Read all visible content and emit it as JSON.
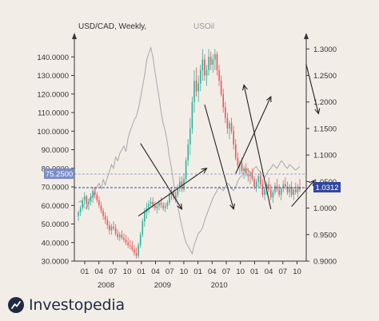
{
  "chart_data": {
    "type": "line",
    "series": [
      {
        "name": "USD/CAD, Weekly,",
        "ohlc": [
          [
            0.985,
            0.995,
            0.975,
            0.992
          ],
          [
            0.992,
            1.005,
            0.985,
            1.0
          ],
          [
            1.0,
            1.02,
            0.995,
            1.015
          ],
          [
            1.015,
            1.03,
            1.005,
            1.022
          ],
          [
            1.022,
            1.025,
            1.0,
            1.008
          ],
          [
            1.008,
            1.018,
            0.996,
            1.012
          ],
          [
            1.012,
            1.028,
            1.005,
            1.02
          ],
          [
            1.02,
            1.04,
            1.01,
            1.032
          ],
          [
            1.032,
            1.04,
            1.018,
            1.025
          ],
          [
            1.025,
            1.03,
            1.01,
            1.015
          ],
          [
            1.015,
            1.022,
            1.0,
            1.005
          ],
          [
            1.005,
            1.012,
            0.99,
            0.995
          ],
          [
            0.995,
            1.0,
            0.978,
            0.985
          ],
          [
            0.985,
            0.992,
            0.97,
            0.978
          ],
          [
            0.978,
            0.985,
            0.96,
            0.968
          ],
          [
            0.968,
            0.975,
            0.95,
            0.958
          ],
          [
            0.958,
            0.97,
            0.95,
            0.965
          ],
          [
            0.965,
            0.975,
            0.958,
            0.962
          ],
          [
            0.962,
            0.97,
            0.948,
            0.952
          ],
          [
            0.952,
            0.96,
            0.94,
            0.945
          ],
          [
            0.945,
            0.955,
            0.938,
            0.95
          ],
          [
            0.95,
            0.958,
            0.94,
            0.944
          ],
          [
            0.944,
            0.952,
            0.935,
            0.94
          ],
          [
            0.94,
            0.95,
            0.93,
            0.935
          ],
          [
            0.935,
            0.945,
            0.925,
            0.93
          ],
          [
            0.93,
            0.94,
            0.922,
            0.928
          ],
          [
            0.928,
            0.938,
            0.918,
            0.922
          ],
          [
            0.922,
            0.93,
            0.91,
            0.915
          ],
          [
            0.915,
            0.925,
            0.905,
            0.91
          ],
          [
            0.91,
            0.935,
            0.905,
            0.93
          ],
          [
            0.93,
            0.955,
            0.925,
            0.95
          ],
          [
            0.95,
            0.98,
            0.945,
            0.975
          ],
          [
            0.975,
            1.0,
            0.965,
            0.992
          ],
          [
            0.992,
            1.01,
            0.98,
            1.0
          ],
          [
            1.0,
            1.015,
            0.99,
            1.008
          ],
          [
            1.008,
            1.02,
            1.0,
            1.012
          ],
          [
            1.012,
            1.02,
            1.0,
            1.005
          ],
          [
            1.005,
            1.012,
            0.995,
            1.0
          ],
          [
            1.0,
            1.01,
            0.99,
            1.004
          ],
          [
            1.004,
            1.015,
            0.996,
            1.01
          ],
          [
            1.01,
            1.02,
            1.0,
            1.006
          ],
          [
            1.006,
            1.012,
            0.995,
            1.0
          ],
          [
            1.0,
            1.01,
            0.992,
            1.004
          ],
          [
            1.004,
            1.015,
            0.998,
            1.01
          ],
          [
            1.01,
            1.03,
            1.005,
            1.025
          ],
          [
            1.025,
            1.04,
            1.015,
            1.03
          ],
          [
            1.03,
            1.035,
            1.015,
            1.02
          ],
          [
            1.02,
            1.03,
            1.01,
            1.025
          ],
          [
            1.025,
            1.045,
            1.02,
            1.04
          ],
          [
            1.04,
            1.06,
            1.03,
            1.05
          ],
          [
            1.05,
            1.06,
            1.03,
            1.035
          ],
          [
            1.035,
            1.065,
            1.03,
            1.055
          ],
          [
            1.055,
            1.095,
            1.05,
            1.09
          ],
          [
            1.09,
            1.13,
            1.08,
            1.12
          ],
          [
            1.12,
            1.17,
            1.1,
            1.15
          ],
          [
            1.15,
            1.21,
            1.14,
            1.2
          ],
          [
            1.2,
            1.26,
            1.18,
            1.24
          ],
          [
            1.24,
            1.265,
            1.21,
            1.22
          ],
          [
            1.22,
            1.25,
            1.2,
            1.235
          ],
          [
            1.235,
            1.27,
            1.22,
            1.26
          ],
          [
            1.26,
            1.3,
            1.24,
            1.28
          ],
          [
            1.28,
            1.29,
            1.24,
            1.25
          ],
          [
            1.25,
            1.27,
            1.23,
            1.26
          ],
          [
            1.26,
            1.3,
            1.25,
            1.285
          ],
          [
            1.285,
            1.295,
            1.26,
            1.27
          ],
          [
            1.27,
            1.29,
            1.255,
            1.28
          ],
          [
            1.28,
            1.3,
            1.26,
            1.29
          ],
          [
            1.29,
            1.295,
            1.25,
            1.26
          ],
          [
            1.26,
            1.27,
            1.23,
            1.24
          ],
          [
            1.24,
            1.25,
            1.21,
            1.215
          ],
          [
            1.215,
            1.225,
            1.18,
            1.19
          ],
          [
            1.19,
            1.2,
            1.16,
            1.17
          ],
          [
            1.17,
            1.18,
            1.14,
            1.15
          ],
          [
            1.15,
            1.165,
            1.13,
            1.16
          ],
          [
            1.16,
            1.17,
            1.14,
            1.145
          ],
          [
            1.145,
            1.155,
            1.11,
            1.12
          ],
          [
            1.12,
            1.13,
            1.09,
            1.095
          ],
          [
            1.095,
            1.105,
            1.075,
            1.08
          ],
          [
            1.08,
            1.09,
            1.065,
            1.085
          ],
          [
            1.085,
            1.095,
            1.065,
            1.07
          ],
          [
            1.07,
            1.08,
            1.055,
            1.075
          ],
          [
            1.075,
            1.085,
            1.06,
            1.065
          ],
          [
            1.065,
            1.075,
            1.05,
            1.06
          ],
          [
            1.06,
            1.07,
            1.045,
            1.065
          ],
          [
            1.065,
            1.075,
            1.05,
            1.055
          ],
          [
            1.055,
            1.06,
            1.035,
            1.04
          ],
          [
            1.04,
            1.055,
            1.03,
            1.05
          ],
          [
            1.05,
            1.065,
            1.04,
            1.06
          ],
          [
            1.06,
            1.07,
            1.04,
            1.045
          ],
          [
            1.045,
            1.055,
            1.02,
            1.025
          ],
          [
            1.025,
            1.04,
            1.015,
            1.035
          ],
          [
            1.035,
            1.05,
            1.025,
            1.045
          ],
          [
            1.045,
            1.058,
            1.03,
            1.035
          ],
          [
            1.035,
            1.045,
            1.015,
            1.02
          ],
          [
            1.02,
            1.035,
            1.01,
            1.03
          ],
          [
            1.03,
            1.048,
            1.025,
            1.042
          ],
          [
            1.042,
            1.055,
            1.03,
            1.035
          ],
          [
            1.035,
            1.045,
            1.02,
            1.025
          ],
          [
            1.025,
            1.04,
            1.015,
            1.038
          ],
          [
            1.038,
            1.052,
            1.03,
            1.045
          ],
          [
            1.045,
            1.058,
            1.035,
            1.04
          ],
          [
            1.04,
            1.05,
            1.025,
            1.03
          ],
          [
            1.03,
            1.045,
            1.02,
            1.04
          ],
          [
            1.04,
            1.05,
            1.02,
            1.025
          ],
          [
            1.025,
            1.04,
            1.015,
            1.035
          ],
          [
            1.035,
            1.048,
            1.025,
            1.03
          ],
          [
            1.03,
            1.045,
            1.02,
            1.04
          ],
          [
            1.04,
            1.055,
            1.03,
            1.035
          ]
        ]
      },
      {
        "name": "USOil",
        "values": [
          61.5,
          62.5,
          61,
          59,
          58,
          62,
          65,
          64,
          68,
          70,
          72,
          69,
          74,
          71,
          75,
          78,
          82,
          80,
          86,
          84,
          88,
          90,
          92,
          89,
          96,
          100,
          103,
          106,
          108,
          112,
          118,
          124,
          130,
          138,
          142,
          145,
          140,
          132,
          125,
          118,
          110,
          104,
          100,
          94,
          86,
          80,
          72,
          66,
          60,
          54,
          49,
          44,
          40,
          38,
          36,
          34,
          39,
          42,
          45,
          46,
          48,
          52,
          55,
          58,
          61,
          64,
          66,
          68,
          70,
          69,
          68,
          70,
          72,
          71,
          69,
          68,
          70,
          73,
          75,
          76,
          78,
          80,
          79,
          78,
          77,
          80,
          81,
          79,
          78,
          76,
          75,
          77,
          79,
          80,
          82,
          81,
          80,
          82,
          84,
          83,
          81,
          80,
          82,
          81,
          80,
          79,
          80,
          81
        ]
      }
    ],
    "x_ticks": [
      "01",
      "04",
      "07",
      "10",
      "01",
      "04",
      "07",
      "10",
      "01",
      "04",
      "07",
      "10",
      "01",
      "04",
      "07",
      "10"
    ],
    "year_labels": [
      "2008",
      "2009",
      "2010"
    ],
    "y_left_ticks": [
      "140.0000",
      "130.0000",
      "120.0000",
      "110.0000",
      "100.0000",
      "90.0000",
      "80.0000",
      "70.0000",
      "60.0000",
      "50.0000",
      "40.0000",
      "30.0000"
    ],
    "y_right_ticks": [
      "1.3000",
      "1.2500",
      "1.2000",
      "1.1500",
      "1.1000",
      "1.0500",
      "1.0000",
      "0.9500",
      "0.9000"
    ],
    "ylim_left": [
      30,
      150
    ],
    "ylim_right": [
      0.9,
      1.32
    ],
    "current_values": {
      "oil": "75.2500",
      "usdcad": "1.0312"
    },
    "grid": false,
    "colors": {
      "background": "#f3ede7",
      "bull": "#2bb39a",
      "bear": "#e8575a",
      "oil_line": "#a7a7ad",
      "axis": "#333333",
      "oil_label_bg": "#7b8cc9",
      "usdcad_label_bg": "#2f46a1",
      "arrow": "#222222"
    },
    "arrows": [
      {
        "from": [
          30,
          1.122
        ],
        "to": [
          50,
          0.998
        ]
      },
      {
        "from": [
          29,
          0.985
        ],
        "to": [
          62,
          1.075
        ]
      },
      {
        "from": [
          61,
          1.195
        ],
        "to": [
          75,
          0.998
        ]
      },
      {
        "from": [
          93,
          0.998
        ],
        "to": [
          80,
          1.232
        ]
      },
      {
        "from": [
          76,
          1.065
        ],
        "to": [
          93,
          1.21
        ]
      },
      {
        "from": [
          103,
          1.003
        ],
        "to": [
          114,
          1.052
        ]
      },
      {
        "from": [
          110,
          1.272
        ],
        "to": [
          116,
          1.178
        ]
      }
    ]
  },
  "brand": {
    "name": "Investopedia",
    "logo_icon": "investopedia-logo-icon"
  }
}
